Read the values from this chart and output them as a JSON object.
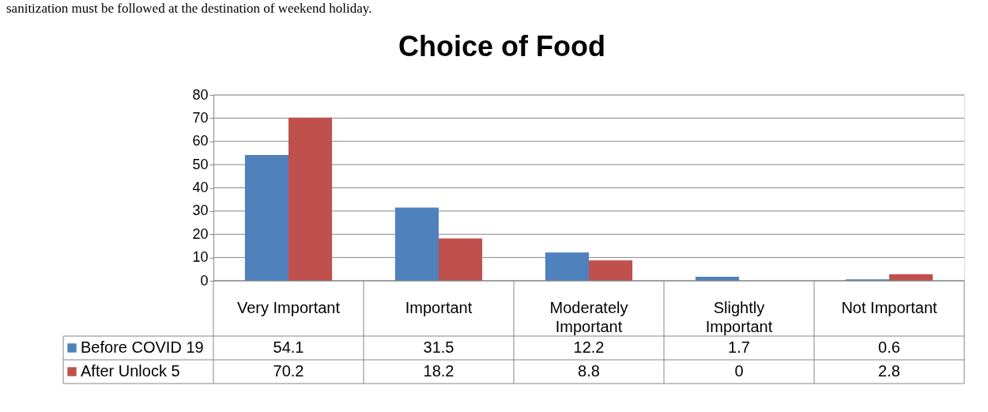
{
  "chart_data": {
    "type": "bar",
    "title": "Choice of Food",
    "annotations": [
      "sanitization must be followed at the destination of weekend holiday."
    ],
    "categories": [
      "Very Important",
      "Important",
      "Moderately Important",
      "Slightly Important",
      "Not Important"
    ],
    "series": [
      {
        "name": "Before COVID 19",
        "color": "#4f81bd",
        "values": [
          54.1,
          31.5,
          12.2,
          1.7,
          0.6
        ]
      },
      {
        "name": "After Unlock 5",
        "color": "#c0504d",
        "values": [
          70.2,
          18.2,
          8.8,
          0,
          2.8
        ]
      }
    ],
    "ylim": [
      0,
      80
    ],
    "yticks": [
      0,
      10,
      20,
      30,
      40,
      50,
      60,
      70,
      80
    ],
    "grid": "y",
    "legend": "bottom",
    "data_labels": true
  }
}
